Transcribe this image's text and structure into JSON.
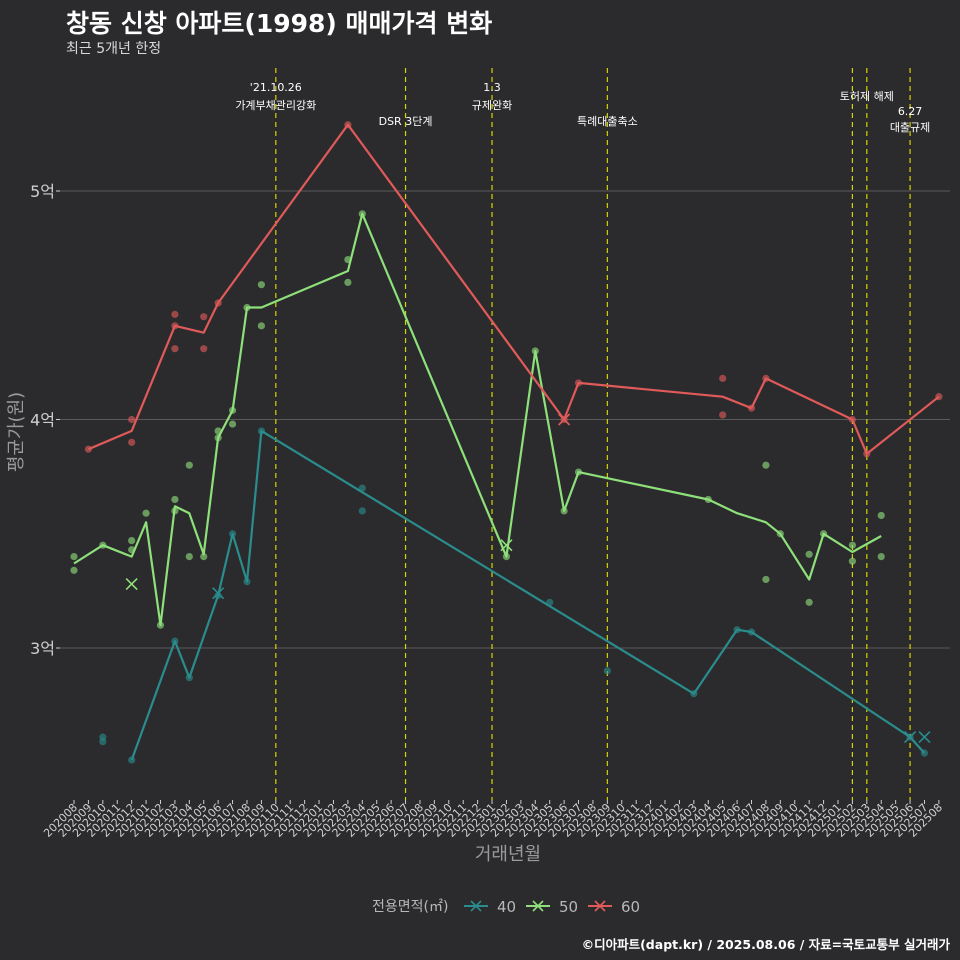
{
  "title": "창동 신창 아파트(1998) 매매가격 변화",
  "subtitle": "최근 5개년 한정",
  "caption": "©디아파트(dapt.kr) / 2025.08.06 / 자료=국토교통부 실거래가",
  "colors": {
    "background": "#2b2b2d",
    "grid": "#5a5a5a",
    "event_line": "#d4d400",
    "axis_text": "#cfcfcf",
    "series_40": "#2a8c8c",
    "series_50": "#8ee07a",
    "series_60": "#e15a5a"
  },
  "chart_data": {
    "type": "line",
    "xlabel": "거래년월",
    "ylabel": "평균가(원)",
    "ylim": [
      2.4,
      5.6
    ],
    "yticks": [
      3,
      4,
      5
    ],
    "ytick_labels": [
      "3억",
      "4억",
      "5억"
    ],
    "grid": true,
    "months": [
      "202008",
      "202009",
      "202010",
      "202011",
      "202012",
      "202101",
      "202102",
      "202103",
      "202104",
      "202105",
      "202106",
      "202107",
      "202108",
      "202109",
      "202110",
      "202111",
      "202112",
      "202201",
      "202202",
      "202203",
      "202204",
      "202205",
      "202206",
      "202207",
      "202208",
      "202209",
      "202210",
      "202211",
      "202212",
      "202301",
      "202302",
      "202303",
      "202304",
      "202305",
      "202306",
      "202307",
      "202308",
      "202309",
      "202310",
      "202311",
      "202312",
      "202401",
      "202402",
      "202403",
      "202404",
      "202405",
      "202406",
      "202407",
      "202408",
      "202409",
      "202410",
      "202411",
      "202412",
      "202501",
      "202502",
      "202503",
      "202504",
      "202505",
      "202506",
      "202507",
      "202508"
    ],
    "legend": {
      "title": "전용면적(㎡)",
      "position": "bottom",
      "entries": [
        "40",
        "50",
        "60"
      ]
    },
    "events": [
      {
        "month": "202110",
        "label": [
          "'21.10.26",
          "가계부채관리강화"
        ],
        "row": 0
      },
      {
        "month": "202207",
        "label": [
          "DSR 3단계"
        ],
        "row": 1
      },
      {
        "month": "202301",
        "label": [
          "1.3",
          "규제완화"
        ],
        "row": 0
      },
      {
        "month": "202309",
        "label": [
          "특례대출축소"
        ],
        "row": 1
      },
      {
        "month": "202502",
        "label": [],
        "row": 0
      },
      {
        "month": "202503",
        "label": [
          "토허제 해제"
        ],
        "row": 0
      },
      {
        "month": "202506",
        "label": [
          "6.27",
          "대출규제"
        ],
        "row": 1
      }
    ],
    "series": [
      {
        "name": "40",
        "color": "#2a8c8c",
        "line": [
          [
            "202012",
            2.51
          ],
          [
            "202103",
            3.03
          ],
          [
            "202104",
            2.87
          ],
          [
            "202106",
            3.23
          ],
          [
            "202107",
            3.5
          ],
          [
            "202108",
            3.29
          ],
          [
            "202109",
            3.95
          ],
          [
            "202403",
            2.8
          ],
          [
            "202406",
            3.08
          ],
          [
            "202407",
            3.07
          ],
          [
            "202506",
            2.61
          ],
          [
            "202507",
            2.54
          ]
        ],
        "points": [
          [
            "202010",
            2.61
          ],
          [
            "202010",
            2.59
          ],
          [
            "202012",
            2.51
          ],
          [
            "202103",
            3.03
          ],
          [
            "202104",
            2.87
          ],
          [
            "202106",
            3.23
          ],
          [
            "202107",
            3.5
          ],
          [
            "202108",
            3.29
          ],
          [
            "202109",
            3.95
          ],
          [
            "202204",
            3.7
          ],
          [
            "202204",
            3.6
          ],
          [
            "202305",
            3.2
          ],
          [
            "202309",
            2.9
          ],
          [
            "202403",
            2.8
          ],
          [
            "202406",
            3.08
          ],
          [
            "202407",
            3.07
          ],
          [
            "202506",
            2.61
          ],
          [
            "202507",
            2.54
          ]
        ],
        "x_marks": [
          [
            "202106",
            3.24
          ],
          [
            "202506",
            2.61
          ],
          [
            "202507",
            2.61
          ]
        ]
      },
      {
        "name": "50",
        "color": "#8ee07a",
        "line": [
          [
            "202008",
            3.37
          ],
          [
            "202010",
            3.45
          ],
          [
            "202012",
            3.4
          ],
          [
            "202101",
            3.55
          ],
          [
            "202102",
            3.1
          ],
          [
            "202103",
            3.62
          ],
          [
            "202104",
            3.59
          ],
          [
            "202105",
            3.41
          ],
          [
            "202106",
            3.92
          ],
          [
            "202107",
            4.04
          ],
          [
            "202108",
            4.49
          ],
          [
            "202109",
            4.49
          ],
          [
            "202203",
            4.65
          ],
          [
            "202204",
            4.9
          ],
          [
            "202302",
            3.4
          ],
          [
            "202304",
            4.3
          ],
          [
            "202306",
            3.6
          ],
          [
            "202307",
            3.77
          ],
          [
            "202404",
            3.65
          ],
          [
            "202406",
            3.59
          ],
          [
            "202408",
            3.55
          ],
          [
            "202409",
            3.5
          ],
          [
            "202411",
            3.3
          ],
          [
            "202412",
            3.5
          ],
          [
            "202502",
            3.42
          ],
          [
            "202504",
            3.49
          ]
        ],
        "points": [
          [
            "202008",
            3.4
          ],
          [
            "202008",
            3.34
          ],
          [
            "202010",
            3.45
          ],
          [
            "202012",
            3.47
          ],
          [
            "202012",
            3.43
          ],
          [
            "202101",
            3.59
          ],
          [
            "202102",
            3.1
          ],
          [
            "202103",
            3.65
          ],
          [
            "202103",
            3.6
          ],
          [
            "202104",
            3.8
          ],
          [
            "202104",
            3.4
          ],
          [
            "202105",
            3.4
          ],
          [
            "202106",
            3.95
          ],
          [
            "202106",
            3.92
          ],
          [
            "202107",
            4.04
          ],
          [
            "202107",
            3.98
          ],
          [
            "202108",
            4.49
          ],
          [
            "202109",
            4.59
          ],
          [
            "202109",
            4.41
          ],
          [
            "202203",
            4.7
          ],
          [
            "202203",
            4.6
          ],
          [
            "202204",
            4.9
          ],
          [
            "202302",
            3.4
          ],
          [
            "202304",
            4.3
          ],
          [
            "202306",
            3.6
          ],
          [
            "202307",
            3.77
          ],
          [
            "202404",
            3.65
          ],
          [
            "202408",
            3.8
          ],
          [
            "202408",
            3.3
          ],
          [
            "202409",
            3.5
          ],
          [
            "202411",
            3.41
          ],
          [
            "202411",
            3.2
          ],
          [
            "202412",
            3.5
          ],
          [
            "202502",
            3.45
          ],
          [
            "202502",
            3.38
          ],
          [
            "202504",
            3.58
          ],
          [
            "202504",
            3.4
          ]
        ],
        "x_marks": [
          [
            "202012",
            3.28
          ],
          [
            "202302",
            3.45
          ]
        ]
      },
      {
        "name": "60",
        "color": "#e15a5a",
        "line": [
          [
            "202009",
            3.87
          ],
          [
            "202012",
            3.95
          ],
          [
            "202103",
            4.41
          ],
          [
            "202105",
            4.38
          ],
          [
            "202106",
            4.51
          ],
          [
            "202203",
            5.29
          ],
          [
            "202306",
            4.0
          ],
          [
            "202307",
            4.16
          ],
          [
            "202405",
            4.1
          ],
          [
            "202407",
            4.05
          ],
          [
            "202408",
            4.18
          ],
          [
            "202502",
            4.0
          ],
          [
            "202503",
            3.85
          ],
          [
            "202508",
            4.1
          ]
        ],
        "points": [
          [
            "202009",
            3.87
          ],
          [
            "202012",
            4.0
          ],
          [
            "202012",
            3.9
          ],
          [
            "202103",
            4.46
          ],
          [
            "202103",
            4.41
          ],
          [
            "202103",
            4.31
          ],
          [
            "202105",
            4.45
          ],
          [
            "202105",
            4.31
          ],
          [
            "202106",
            4.51
          ],
          [
            "202203",
            5.29
          ],
          [
            "202306",
            4.0
          ],
          [
            "202307",
            4.16
          ],
          [
            "202405",
            4.18
          ],
          [
            "202405",
            4.02
          ],
          [
            "202407",
            4.05
          ],
          [
            "202408",
            4.18
          ],
          [
            "202502",
            4.0
          ],
          [
            "202503",
            3.85
          ],
          [
            "202508",
            4.1
          ]
        ],
        "x_marks": [
          [
            "202306",
            4.0
          ]
        ]
      }
    ]
  }
}
